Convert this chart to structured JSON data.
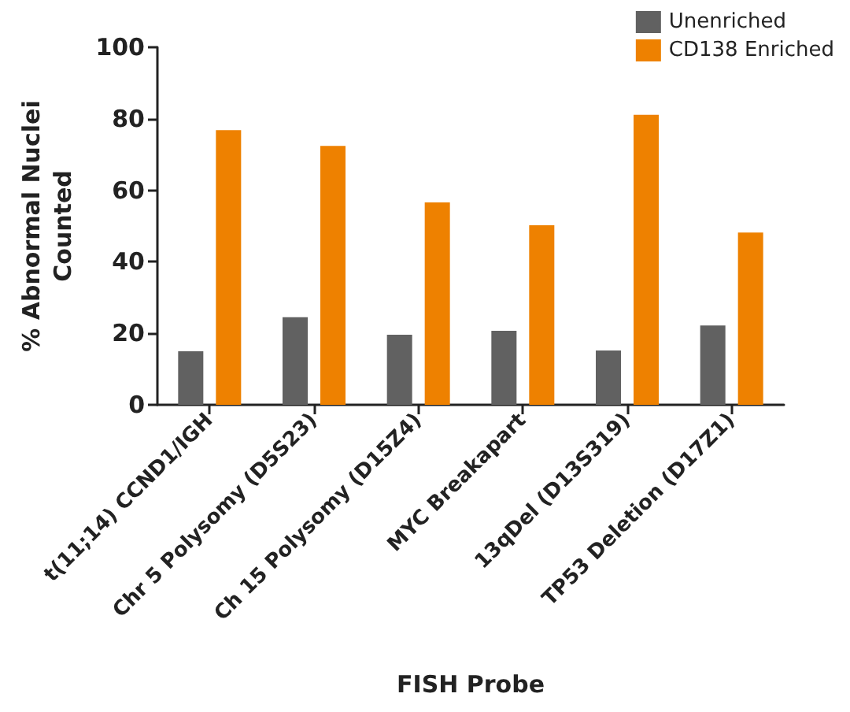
{
  "chart_data": {
    "type": "bar",
    "xlabel": "FISH Probe",
    "ylabel": "% Abnormal Nuclei\nCounted",
    "categories": [
      "t(11;14) CCND1/IGH",
      "Chr 5 Polysomy (D5S23)",
      "Ch 15 Polysomy (D15Z4)",
      "MYC Breakapart",
      "13qDel (D13S319)",
      "TP53 Deletion (D17Z1)"
    ],
    "series": [
      {
        "name": "Unenriched",
        "color": "#616161",
        "values": [
          15,
          24.5,
          19.6,
          20.7,
          15.2,
          22.2
        ]
      },
      {
        "name": "CD138 Enriched",
        "color": "#ee8100",
        "values": [
          76.8,
          72.4,
          56.6,
          50.2,
          81.1,
          48.2
        ]
      }
    ],
    "ylim": [
      0,
      100
    ],
    "yticks": [
      0,
      20,
      40,
      60,
      80,
      100
    ],
    "grid": false,
    "legend": "top right"
  }
}
